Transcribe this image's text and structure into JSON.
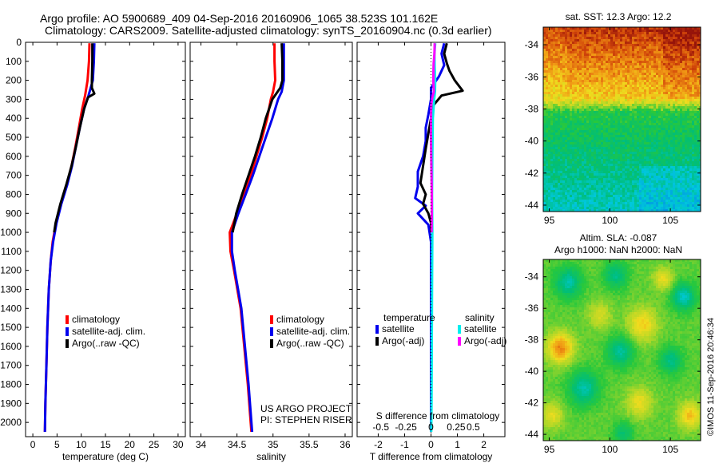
{
  "header": {
    "line1": "Argo profile: AO 5900689_409 04-Sep-2016 20160906_1065 38.523S 101.162E",
    "line2": "Climatology: CARS2009. Satellite-adjusted climatology: synTS_20160904.nc (0.3d earlier)"
  },
  "colors": {
    "climatology": "#ff0000",
    "satellite": "#0000ee",
    "argo": "#000000",
    "sal_satellite": "#00eeee",
    "sal_argo": "#ff00ff"
  },
  "chart_data": [
    {
      "type": "line",
      "panel": "temperature",
      "xlabel": "temperature (deg C)",
      "ylabel": "",
      "xlim": [
        -1.5,
        31.5
      ],
      "ylim": [
        2075,
        0
      ],
      "xticks": [
        "0",
        "5",
        "10",
        "15",
        "20",
        "25",
        "30"
      ],
      "yticks": [
        "0",
        "100",
        "200",
        "300",
        "400",
        "500",
        "600",
        "700",
        "800",
        "900",
        "1000",
        "1100",
        "1200",
        "1300",
        "1400",
        "1500",
        "1600",
        "1700",
        "1800",
        "1900",
        "2000"
      ],
      "legend": [
        "climatology",
        "satellite-adj. clim.",
        "Argo(..raw -QC)"
      ],
      "legend_position": "lower-right",
      "series": [
        {
          "name": "climatology",
          "color": "#ff0000",
          "depth": [
            5,
            100,
            200,
            280,
            350,
            450,
            550,
            650,
            750,
            850,
            950,
            1050,
            1150,
            1300,
            1500,
            1700,
            1900,
            2050
          ],
          "values": [
            11.7,
            11.6,
            11.3,
            10.8,
            10.2,
            9.5,
            8.8,
            8.0,
            7.0,
            5.8,
            4.8,
            4.1,
            3.7,
            3.3,
            3.0,
            2.8,
            2.6,
            2.5
          ]
        },
        {
          "name": "satellite-adj. clim.",
          "color": "#0000ee",
          "depth": [
            5,
            100,
            200,
            280,
            350,
            450,
            550,
            650,
            750,
            850,
            950,
            1050,
            1150,
            1300,
            1500,
            1700,
            1900,
            2050
          ],
          "values": [
            12.7,
            12.6,
            12.4,
            11.5,
            10.6,
            9.7,
            8.9,
            8.1,
            7.1,
            5.9,
            4.9,
            4.2,
            3.7,
            3.3,
            3.0,
            2.8,
            2.6,
            2.5
          ]
        },
        {
          "name": "Argo(..raw -QC)",
          "color": "#000000",
          "depth": [
            5,
            100,
            200,
            240,
            270,
            290,
            350,
            450,
            550,
            650,
            750,
            850,
            950,
            1000
          ],
          "values": [
            12.3,
            12.3,
            12.2,
            12.2,
            12.7,
            11.4,
            10.6,
            9.7,
            8.9,
            8.0,
            6.9,
            5.7,
            4.7,
            4.4
          ]
        }
      ]
    },
    {
      "type": "line",
      "panel": "salinity",
      "xlabel": "salinity",
      "ylabel": "",
      "xlim": [
        33.85,
        36.1
      ],
      "ylim": [
        2075,
        0
      ],
      "xticks": [
        "34",
        "34.5",
        "35",
        "35.5",
        "36"
      ],
      "legend": [
        "climatology",
        "satellite-adj. clim.",
        "Argo(..raw -QC)"
      ],
      "legend_position": "lower-right",
      "series": [
        {
          "name": "climatology",
          "color": "#ff0000",
          "depth": [
            5,
            100,
            200,
            260,
            300,
            400,
            500,
            600,
            700,
            800,
            900,
            1000,
            1100,
            1200,
            1400,
            1600,
            1800,
            2050
          ],
          "values": [
            35.02,
            35.02,
            35.03,
            35.0,
            34.97,
            34.92,
            34.85,
            34.77,
            34.69,
            34.6,
            34.5,
            34.4,
            34.41,
            34.46,
            34.55,
            34.6,
            34.65,
            34.7
          ]
        },
        {
          "name": "satellite-adj. clim.",
          "color": "#0000ee",
          "depth": [
            5,
            100,
            200,
            260,
            300,
            400,
            500,
            600,
            700,
            800,
            900,
            1000,
            1100,
            1200,
            1400,
            1600,
            1800,
            2050
          ],
          "values": [
            35.15,
            35.15,
            35.15,
            35.12,
            35.07,
            34.99,
            34.9,
            34.81,
            34.72,
            34.62,
            34.52,
            34.43,
            34.43,
            34.47,
            34.56,
            34.61,
            34.66,
            34.71
          ]
        },
        {
          "name": "Argo(..raw -QC)",
          "color": "#000000",
          "depth": [
            5,
            100,
            200,
            240,
            300,
            400,
            500,
            600,
            700,
            800,
            900,
            1000
          ],
          "values": [
            35.12,
            35.13,
            35.13,
            35.1,
            34.99,
            34.9,
            34.83,
            34.75,
            34.66,
            34.57,
            34.49,
            34.44
          ]
        }
      ]
    },
    {
      "type": "line",
      "panel": "difference",
      "xlabel": "T difference from climatology",
      "xlabel_top": "S difference from climatology",
      "xlim": [
        -2.8,
        2.8
      ],
      "ylim": [
        2075,
        0
      ],
      "xticks": [
        "-2",
        "-1",
        "0",
        "1",
        "2"
      ],
      "xticks_top": [
        "-0.5",
        "-0.25",
        "0",
        "0.25",
        "0.5"
      ],
      "legend_headers": [
        "temperature",
        "salinity"
      ],
      "legend": [
        "satellite",
        "Argo(-adj)",
        "satellite",
        "Argo(-adj)"
      ],
      "legend_position": "lower-center",
      "series": [
        {
          "name": "satellite",
          "group": "temperature",
          "color": "#0000ee",
          "depth": [
            5,
            60,
            120,
            180,
            240,
            300,
            380,
            450,
            520,
            600,
            680,
            760,
            820,
            860,
            900,
            960,
            1050,
            1300,
            1600,
            1900,
            2050
          ],
          "values": [
            0.5,
            0.4,
            0.5,
            0.3,
            0.0,
            0.0,
            -0.1,
            -0.2,
            -0.2,
            -0.3,
            -0.5,
            -0.5,
            -0.6,
            -0.2,
            -0.5,
            -0.1,
            0.0,
            0.0,
            0.0,
            0.0,
            0.0
          ]
        },
        {
          "name": "Argo(-adj)",
          "group": "temperature",
          "color": "#000000",
          "depth": [
            5,
            60,
            110,
            150,
            200,
            255,
            280,
            330,
            400,
            480,
            560,
            650,
            740,
            800,
            850,
            900,
            950,
            1000
          ],
          "values": [
            0.6,
            0.5,
            0.6,
            0.7,
            0.9,
            1.2,
            0.4,
            0.1,
            0.0,
            -0.1,
            -0.2,
            -0.3,
            -0.4,
            -0.2,
            -0.3,
            -0.1,
            0.0,
            0.0
          ]
        },
        {
          "name": "satellite",
          "group": "salinity",
          "color": "#00eeee",
          "depth": [
            5,
            60,
            130,
            200,
            260,
            300,
            400,
            600,
            800,
            1000,
            1300,
            1600,
            1900,
            2050
          ],
          "values": [
            0.16,
            0.13,
            0.14,
            0.16,
            0.15,
            0.12,
            0.07,
            0.05,
            0.04,
            0.05,
            0.04,
            0.03,
            0.02,
            0.01
          ]
        },
        {
          "name": "Argo(-adj)",
          "group": "salinity",
          "color": "#ff00ff",
          "depth": [
            5,
            60,
            110,
            160,
            210,
            260,
            290,
            330,
            400,
            500,
            600,
            700,
            800,
            900,
            1000
          ],
          "values": [
            0.14,
            0.13,
            0.1,
            0.09,
            0.09,
            0.11,
            0.05,
            0.01,
            0.0,
            0.0,
            0.01,
            0.02,
            0.03,
            0.03,
            0.02
          ]
        }
      ]
    },
    {
      "type": "heatmap",
      "panel": "sst-map",
      "title": "sat. SST: 12.3 Argo: 12.2",
      "xticks": [
        "95",
        "100",
        "105"
      ],
      "yticks": [
        "-34",
        "-36",
        "-38",
        "-40",
        "-42",
        "-44"
      ],
      "xlim": [
        94.5,
        107.5
      ],
      "ylim": [
        -44.4,
        -32.9
      ]
    },
    {
      "type": "heatmap",
      "panel": "sla-map",
      "title_line1": "Altim. SLA: -0.087",
      "title_line2": "Argo h1000: NaN h2000: NaN",
      "xticks": [
        "95",
        "100",
        "105"
      ],
      "yticks": [
        "-34",
        "-36",
        "-38",
        "-40",
        "-42",
        "-44"
      ],
      "xlim": [
        94.5,
        107.5
      ],
      "ylim": [
        -44.4,
        -32.9
      ]
    }
  ],
  "annotations": {
    "project": "US ARGO PROJECT",
    "pi": "PI: STEPHEN RISER",
    "copyright": "©IMOS 11-Sep-2016 20:46:34"
  }
}
